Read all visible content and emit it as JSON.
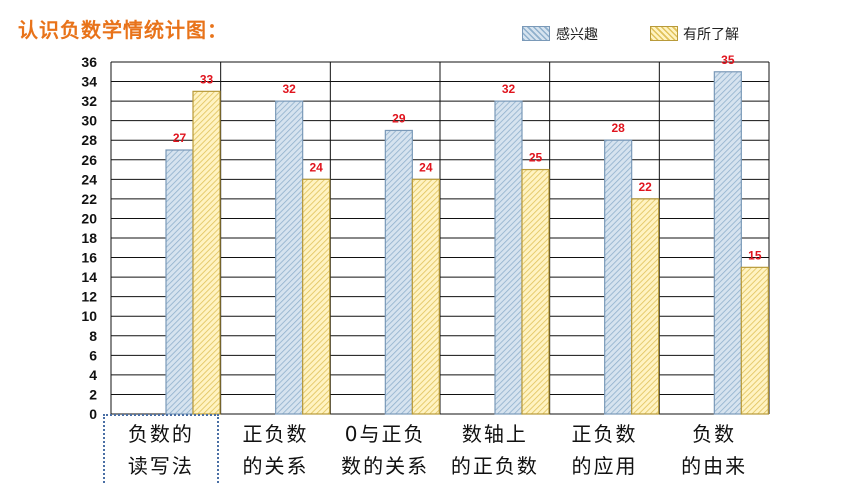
{
  "title": "认识负数学情统计图：",
  "colors": {
    "series1_stroke": "#7a99b8",
    "series1_fill": "#d6e3ef",
    "series1_hatch": "#8fb0cc",
    "series2_stroke": "#b89a3a",
    "series2_fill": "#fff3c2",
    "series2_hatch": "#e0c25a",
    "value_label": "#e0141e",
    "grid": "#111111"
  },
  "chart_data": {
    "type": "bar",
    "title": "认识负数学情统计图：",
    "categories": [
      [
        "负数的",
        "读写法"
      ],
      [
        "正负数",
        "的关系"
      ],
      [
        "0与正负",
        "数的关系"
      ],
      [
        "数轴上",
        "的正负数"
      ],
      [
        "正负数",
        "的应用"
      ],
      [
        "负数",
        "的由来"
      ]
    ],
    "series": [
      {
        "name": "感兴趣",
        "values": [
          27,
          32,
          29,
          32,
          28,
          35
        ]
      },
      {
        "name": "有所了解",
        "values": [
          33,
          24,
          24,
          25,
          22,
          15
        ]
      }
    ],
    "ylim": [
      0,
      36
    ],
    "yticks": [
      0,
      2,
      4,
      6,
      8,
      10,
      12,
      14,
      16,
      18,
      20,
      22,
      24,
      26,
      28,
      30,
      32,
      34,
      36
    ],
    "grid": true,
    "legend_position": "top-right",
    "data_labels": true
  },
  "selected_category_index": 0
}
